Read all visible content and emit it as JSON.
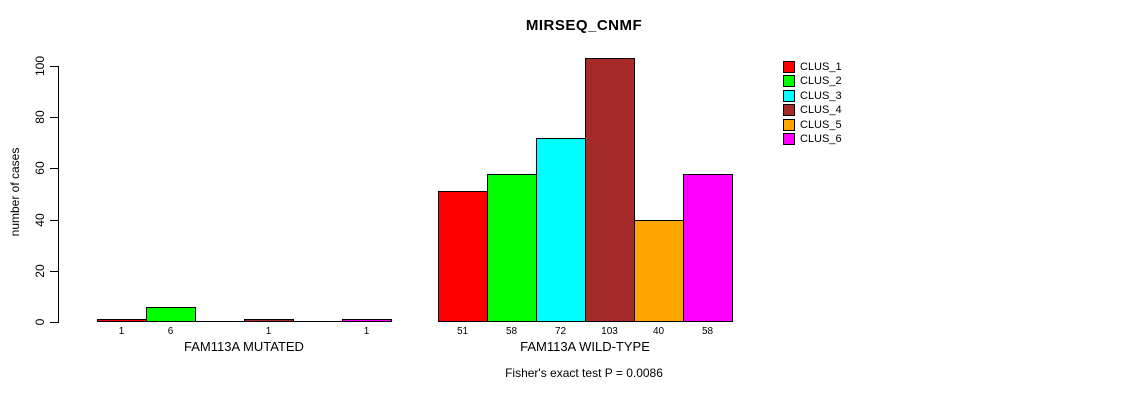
{
  "chart_data": {
    "type": "bar",
    "title": "MIRSEQ_CNMF",
    "ylabel": "number of cases",
    "ylim": [
      0,
      100
    ],
    "yticks": [
      0,
      20,
      40,
      60,
      80,
      100
    ],
    "grid": false,
    "legend_position": "right",
    "legend": [
      {
        "label": "CLUS_1",
        "color": "#FF0000"
      },
      {
        "label": "CLUS_2",
        "color": "#00FF00"
      },
      {
        "label": "CLUS_3",
        "color": "#00FFFF"
      },
      {
        "label": "CLUS_4",
        "color": "#A52A2A"
      },
      {
        "label": "CLUS_5",
        "color": "#FFA500"
      },
      {
        "label": "CLUS_6",
        "color": "#FF00FF"
      }
    ],
    "groups": [
      {
        "label": "FAM113A MUTATED",
        "values": [
          1,
          6,
          0,
          1,
          0,
          1
        ]
      },
      {
        "label": "FAM113A WILD-TYPE",
        "values": [
          51,
          58,
          72,
          103,
          40,
          58
        ]
      }
    ],
    "footer": "Fisher's exact test P = 0.0086"
  }
}
